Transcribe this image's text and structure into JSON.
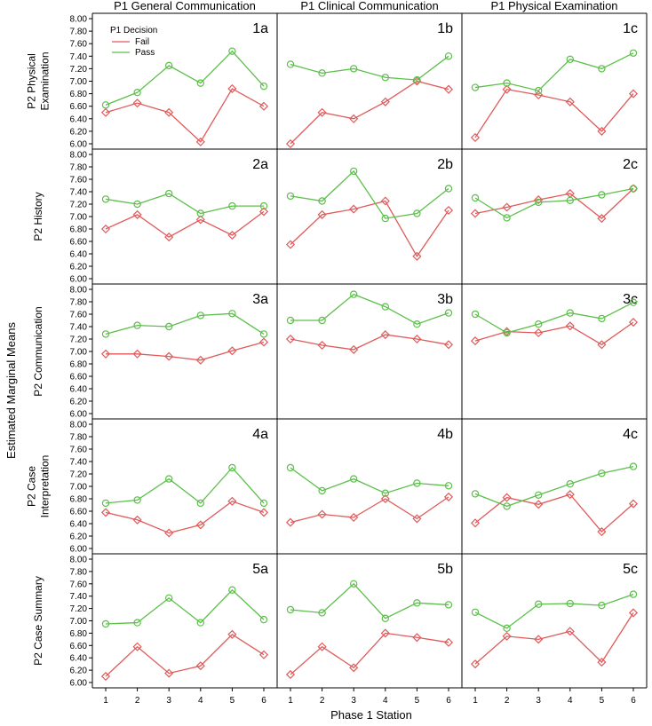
{
  "colors": {
    "Fail": "#e05a5a",
    "Pass": "#5cbf4a",
    "frame": "#000000"
  },
  "legend": {
    "title": "P1 Decision",
    "items": [
      "Fail",
      "Pass"
    ]
  },
  "chart_data": {
    "type": "line",
    "xlabel": "Phase 1 Station",
    "ylabel": "Estimated Marginal Means",
    "x": [
      1,
      2,
      3,
      4,
      5,
      6
    ],
    "ylim": [
      6.0,
      8.0
    ],
    "yticks": [
      "6.00",
      "6.20",
      "6.40",
      "6.60",
      "6.80",
      "7.00",
      "7.20",
      "7.40",
      "7.60",
      "7.80",
      "8.00"
    ],
    "columns": [
      "P1 General Communication",
      "P1 Clinical Communication",
      "P1 Physical Examination"
    ],
    "rows": [
      [
        "P2 Physical",
        "Examination"
      ],
      [
        "P2 History"
      ],
      [
        "P2 Communication"
      ],
      [
        "P2 Case",
        "Interpretation"
      ],
      [
        "P2 Case Summary"
      ]
    ],
    "panels": [
      {
        "label": "1a",
        "row": 0,
        "col": 0,
        "series": [
          {
            "name": "Fail",
            "values": [
              6.5,
              6.65,
              6.5,
              6.03,
              6.88,
              6.6
            ]
          },
          {
            "name": "Pass",
            "values": [
              6.62,
              6.82,
              7.25,
              6.97,
              7.48,
              6.92
            ]
          }
        ]
      },
      {
        "label": "1b",
        "row": 0,
        "col": 1,
        "series": [
          {
            "name": "Fail",
            "values": [
              6.0,
              6.5,
              6.4,
              6.67,
              7.0,
              6.87
            ]
          },
          {
            "name": "Pass",
            "values": [
              7.27,
              7.13,
              7.2,
              7.06,
              7.02,
              7.4
            ]
          }
        ]
      },
      {
        "label": "1c",
        "row": 0,
        "col": 2,
        "series": [
          {
            "name": "Fail",
            "values": [
              6.1,
              6.87,
              6.78,
              6.67,
              6.2,
              6.8
            ]
          },
          {
            "name": "Pass",
            "values": [
              6.9,
              6.97,
              6.85,
              7.35,
              7.2,
              7.45
            ]
          }
        ]
      },
      {
        "label": "2a",
        "row": 1,
        "col": 0,
        "series": [
          {
            "name": "Fail",
            "values": [
              6.8,
              7.03,
              6.67,
              6.95,
              6.7,
              7.08
            ]
          },
          {
            "name": "Pass",
            "values": [
              7.28,
              7.2,
              7.37,
              7.05,
              7.17,
              7.17
            ]
          }
        ]
      },
      {
        "label": "2b",
        "row": 1,
        "col": 1,
        "series": [
          {
            "name": "Fail",
            "values": [
              6.55,
              7.03,
              7.12,
              7.25,
              6.36,
              7.1
            ]
          },
          {
            "name": "Pass",
            "values": [
              7.33,
              7.25,
              7.73,
              6.97,
              7.05,
              7.45
            ]
          }
        ]
      },
      {
        "label": "2c",
        "row": 1,
        "col": 2,
        "series": [
          {
            "name": "Fail",
            "values": [
              7.05,
              7.15,
              7.27,
              7.37,
              6.97,
              7.45
            ]
          },
          {
            "name": "Pass",
            "values": [
              7.3,
              6.98,
              7.23,
              7.26,
              7.35,
              7.45
            ]
          }
        ]
      },
      {
        "label": "3a",
        "row": 2,
        "col": 0,
        "series": [
          {
            "name": "Fail",
            "values": [
              6.96,
              6.96,
              6.92,
              6.86,
              7.01,
              7.15
            ]
          },
          {
            "name": "Pass",
            "values": [
              7.28,
              7.42,
              7.4,
              7.58,
              7.61,
              7.28
            ]
          }
        ]
      },
      {
        "label": "3b",
        "row": 2,
        "col": 1,
        "series": [
          {
            "name": "Fail",
            "values": [
              7.2,
              7.1,
              7.03,
              7.27,
              7.2,
              7.11
            ]
          },
          {
            "name": "Pass",
            "values": [
              7.5,
              7.5,
              7.92,
              7.72,
              7.44,
              7.62
            ]
          }
        ]
      },
      {
        "label": "3c",
        "row": 2,
        "col": 2,
        "series": [
          {
            "name": "Fail",
            "values": [
              7.17,
              7.32,
              7.3,
              7.41,
              7.11,
              7.47
            ]
          },
          {
            "name": "Pass",
            "values": [
              7.6,
              7.3,
              7.44,
              7.62,
              7.53,
              7.79
            ]
          }
        ]
      },
      {
        "label": "4a",
        "row": 3,
        "col": 0,
        "series": [
          {
            "name": "Fail",
            "values": [
              6.58,
              6.46,
              6.25,
              6.38,
              6.76,
              6.58
            ]
          },
          {
            "name": "Pass",
            "values": [
              6.73,
              6.78,
              7.12,
              6.73,
              7.3,
              6.73
            ]
          }
        ]
      },
      {
        "label": "4b",
        "row": 3,
        "col": 1,
        "series": [
          {
            "name": "Fail",
            "values": [
              6.42,
              6.55,
              6.5,
              6.8,
              6.48,
              6.83
            ]
          },
          {
            "name": "Pass",
            "values": [
              7.3,
              6.93,
              7.12,
              6.89,
              7.05,
              7.01
            ]
          }
        ]
      },
      {
        "label": "4c",
        "row": 3,
        "col": 2,
        "series": [
          {
            "name": "Fail",
            "values": [
              6.41,
              6.82,
              6.71,
              6.87,
              6.27,
              6.72
            ]
          },
          {
            "name": "Pass",
            "values": [
              6.88,
              6.68,
              6.86,
              7.04,
              7.21,
              7.32
            ]
          }
        ]
      },
      {
        "label": "5a",
        "row": 4,
        "col": 0,
        "series": [
          {
            "name": "Fail",
            "values": [
              6.1,
              6.58,
              6.15,
              6.27,
              6.78,
              6.45
            ]
          },
          {
            "name": "Pass",
            "values": [
              6.95,
              6.97,
              7.37,
              6.97,
              7.5,
              7.02
            ]
          }
        ]
      },
      {
        "label": "5b",
        "row": 4,
        "col": 1,
        "series": [
          {
            "name": "Fail",
            "values": [
              6.13,
              6.58,
              6.24,
              6.8,
              6.73,
              6.65
            ]
          },
          {
            "name": "Pass",
            "values": [
              7.18,
              7.13,
              7.6,
              7.04,
              7.29,
              7.26
            ]
          }
        ]
      },
      {
        "label": "5c",
        "row": 4,
        "col": 2,
        "series": [
          {
            "name": "Fail",
            "values": [
              6.3,
              6.75,
              6.7,
              6.83,
              6.33,
              7.13
            ]
          },
          {
            "name": "Pass",
            "values": [
              7.14,
              6.88,
              7.27,
              7.28,
              7.25,
              7.43
            ]
          }
        ]
      }
    ]
  }
}
